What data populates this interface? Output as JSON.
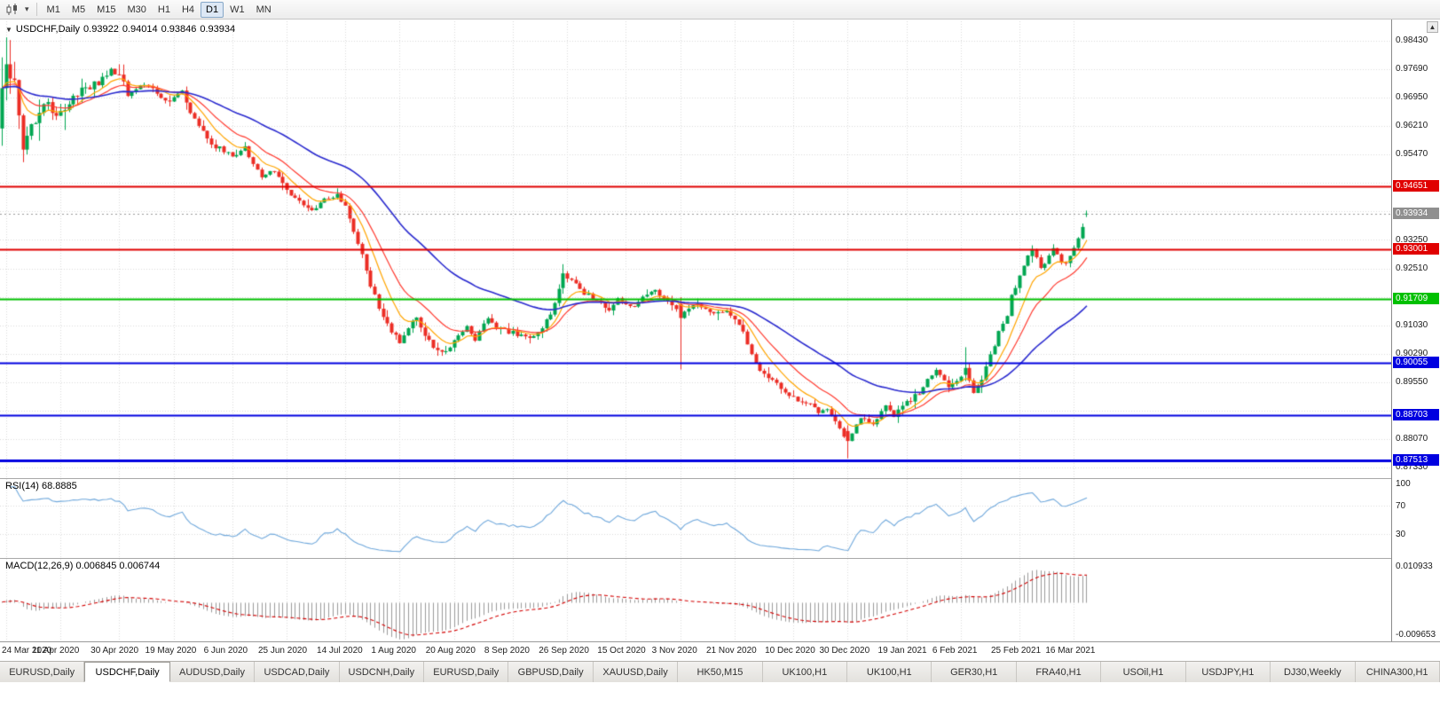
{
  "toolbar": {
    "timeframes": [
      "M1",
      "M5",
      "M15",
      "M30",
      "H1",
      "H4",
      "D1",
      "W1",
      "MN"
    ],
    "active_timeframe": "D1"
  },
  "chart": {
    "symbol_period": "USDCHF,Daily",
    "ohlc": {
      "open": "0.93922",
      "high": "0.94014",
      "low": "0.93846",
      "close": "0.93934"
    }
  },
  "indicators": {
    "rsi": {
      "label": "RSI(14) 68.8885",
      "period": 14,
      "value": "68.8885",
      "levels": [
        100,
        70,
        30
      ]
    },
    "macd": {
      "label": "MACD(12,26,9) 0.006845 0.006744",
      "value": "0.006845",
      "signal_value": "0.006744",
      "axis_max": "0.010933",
      "axis_min": "-0.009653"
    }
  },
  "colors": {
    "candle_up": "#00A651",
    "candle_down": "#EC2D25",
    "ma_fast": "#FFA500",
    "ma_mid": "#FF3B30",
    "ma_slow": "#2A2ACF",
    "rsi_line": "#6FA8DC",
    "macd_hist": "#9A9A9A",
    "macd_signal": "#D40000",
    "grid": "#DBDBDB",
    "current_line": "#999999"
  },
  "chart_data": {
    "type": "candlestick",
    "symbol": "USDCHF",
    "timeframe": "Daily",
    "candle_count": 260,
    "ylim": [
      0.871,
      0.988
    ],
    "macd_range": [
      -0.009653,
      0.010933
    ],
    "price_axis": {
      "grid_start": 0.9843,
      "grid_step": 0.0074,
      "tick_labels": [
        "0.98430",
        "0.97690",
        "0.96950",
        "0.96210",
        "0.95470",
        "0.93250",
        "0.92510",
        "0.91030",
        "0.90290",
        "0.89550",
        "0.88070",
        "0.87330"
      ]
    },
    "x_dates": [
      "24 Mar 2020",
      "11 Apr 2020",
      "30 Apr 2020",
      "19 May 2020",
      "6 Jun 2020",
      "25 Jun 2020",
      "14 Jul 2020",
      "1 Aug 2020",
      "20 Aug 2020",
      "8 Sep 2020",
      "26 Sep 2020",
      "15 Oct 2020",
      "3 Nov 2020",
      "21 Nov 2020",
      "10 Dec 2020",
      "30 Dec 2020",
      "19 Jan 2021",
      "6 Feb 2021",
      "25 Feb 2021",
      "16 Mar 2021"
    ],
    "hlines": [
      {
        "price": 0.94651,
        "label": "0.94651",
        "color": "#E00000",
        "width": 2
      },
      {
        "price": 0.93001,
        "label": "0.93001",
        "color": "#E00000",
        "width": 2
      },
      {
        "price": 0.91709,
        "label": "0.91709",
        "color": "#00C000",
        "width": 2
      },
      {
        "price": 0.90055,
        "label": "0.90055",
        "color": "#0000E0",
        "width": 2
      },
      {
        "price": 0.88703,
        "label": "0.88703",
        "color": "#0000E0",
        "width": 2
      },
      {
        "price": 0.87513,
        "label": "0.87513",
        "color": "#0000E0",
        "width": 3
      }
    ],
    "current_price": {
      "value": 0.93934,
      "label": "0.93934",
      "color": "#8F8F8F"
    },
    "close_anchors": [
      [
        0,
        0.97
      ],
      [
        3,
        0.975
      ],
      [
        5,
        0.956
      ],
      [
        8,
        0.964
      ],
      [
        10,
        0.969
      ],
      [
        13,
        0.965
      ],
      [
        15,
        0.9665
      ],
      [
        18,
        0.97
      ],
      [
        21,
        0.9725
      ],
      [
        24,
        0.9745
      ],
      [
        26,
        0.977
      ],
      [
        28,
        0.975
      ],
      [
        30,
        0.9705
      ],
      [
        33,
        0.973
      ],
      [
        36,
        0.9715
      ],
      [
        38,
        0.969
      ],
      [
        40,
        0.9685
      ],
      [
        43,
        0.971
      ],
      [
        46,
        0.9635
      ],
      [
        50,
        0.9575
      ],
      [
        55,
        0.9545
      ],
      [
        58,
        0.9565
      ],
      [
        62,
        0.9485
      ],
      [
        65,
        0.9505
      ],
      [
        69,
        0.9445
      ],
      [
        72,
        0.942
      ],
      [
        74,
        0.94
      ],
      [
        77,
        0.943
      ],
      [
        80,
        0.9445
      ],
      [
        82,
        0.9415
      ],
      [
        84,
        0.9345
      ],
      [
        86,
        0.929
      ],
      [
        88,
        0.9205
      ],
      [
        90,
        0.915
      ],
      [
        93,
        0.9085
      ],
      [
        95,
        0.906
      ],
      [
        97,
        0.91
      ],
      [
        99,
        0.9125
      ],
      [
        101,
        0.907
      ],
      [
        104,
        0.904
      ],
      [
        106,
        0.903
      ],
      [
        109,
        0.9075
      ],
      [
        111,
        0.91
      ],
      [
        113,
        0.906
      ],
      [
        116,
        0.9125
      ],
      [
        118,
        0.91
      ],
      [
        120,
        0.909
      ],
      [
        123,
        0.908
      ],
      [
        126,
        0.907
      ],
      [
        129,
        0.91
      ],
      [
        131,
        0.9125
      ],
      [
        133,
        0.9195
      ],
      [
        134,
        0.9235
      ],
      [
        136,
        0.9225
      ],
      [
        138,
        0.9195
      ],
      [
        140,
        0.918
      ],
      [
        143,
        0.916
      ],
      [
        145,
        0.914
      ],
      [
        147,
        0.917
      ],
      [
        149,
        0.916
      ],
      [
        151,
        0.915
      ],
      [
        153,
        0.918
      ],
      [
        155,
        0.9195
      ],
      [
        157,
        0.9185
      ],
      [
        160,
        0.916
      ],
      [
        162,
        0.912
      ],
      [
        165,
        0.916
      ],
      [
        167,
        0.915
      ],
      [
        170,
        0.913
      ],
      [
        173,
        0.914
      ],
      [
        176,
        0.911
      ],
      [
        179,
        0.903
      ],
      [
        181,
        0.899
      ],
      [
        183,
        0.8965
      ],
      [
        186,
        0.894
      ],
      [
        189,
        0.8915
      ],
      [
        192,
        0.89
      ],
      [
        195,
        0.888
      ],
      [
        197,
        0.889
      ],
      [
        199,
        0.885
      ],
      [
        202,
        0.88
      ],
      [
        205,
        0.8865
      ],
      [
        208,
        0.885
      ],
      [
        211,
        0.889
      ],
      [
        213,
        0.887
      ],
      [
        216,
        0.89
      ],
      [
        219,
        0.893
      ],
      [
        221,
        0.8965
      ],
      [
        223,
        0.899
      ],
      [
        226,
        0.894
      ],
      [
        228,
        0.896
      ],
      [
        230,
        0.899
      ],
      [
        232,
        0.893
      ],
      [
        234,
        0.896
      ],
      [
        235,
        0.9
      ],
      [
        237,
        0.905
      ],
      [
        238,
        0.909
      ],
      [
        240,
        0.913
      ],
      [
        241,
        0.918
      ],
      [
        243,
        0.923
      ],
      [
        245,
        0.929
      ],
      [
        246,
        0.93
      ],
      [
        248,
        0.925
      ],
      [
        250,
        0.928
      ],
      [
        251,
        0.93
      ],
      [
        253,
        0.927
      ],
      [
        254,
        0.926
      ],
      [
        256,
        0.93
      ],
      [
        258,
        0.936
      ],
      [
        259,
        0.93934
      ]
    ],
    "candle_overrides": [
      {
        "i": 0,
        "o": 0.9615,
        "h": 0.98,
        "l": 0.957,
        "c": 0.972
      },
      {
        "i": 1,
        "o": 0.972,
        "h": 0.9852,
        "l": 0.9688,
        "c": 0.9782
      },
      {
        "i": 2,
        "o": 0.9782,
        "h": 0.9845,
        "l": 0.9705,
        "c": 0.9745
      },
      {
        "i": 134,
        "o": 0.92,
        "h": 0.9262,
        "l": 0.9185,
        "c": 0.9238
      },
      {
        "i": 162,
        "o": 0.9158,
        "h": 0.9176,
        "l": 0.8988,
        "c": 0.9122
      },
      {
        "i": 202,
        "o": 0.8828,
        "h": 0.8843,
        "l": 0.8757,
        "c": 0.8802
      },
      {
        "i": 230,
        "o": 0.8974,
        "h": 0.9046,
        "l": 0.8958,
        "c": 0.8992
      },
      {
        "i": 246,
        "o": 0.9283,
        "h": 0.9311,
        "l": 0.9266,
        "c": 0.9301
      },
      {
        "i": 259,
        "o": 0.93922,
        "h": 0.94014,
        "l": 0.93846,
        "c": 0.93934
      }
    ]
  },
  "tabs": {
    "items": [
      {
        "label": "EURUSD,Daily",
        "active": false
      },
      {
        "label": "USDCHF,Daily",
        "active": true
      },
      {
        "label": "AUDUSD,Daily",
        "active": false
      },
      {
        "label": "USDCAD,Daily",
        "active": false
      },
      {
        "label": "USDCNH,Daily",
        "active": false
      },
      {
        "label": "EURUSD,Daily",
        "active": false
      },
      {
        "label": "GBPUSD,Daily",
        "active": false
      },
      {
        "label": "XAUUSD,Daily",
        "active": false
      },
      {
        "label": "HK50,M15",
        "active": false
      },
      {
        "label": "UK100,H1",
        "active": false
      },
      {
        "label": "UK100,H1",
        "active": false
      },
      {
        "label": "GER30,H1",
        "active": false
      },
      {
        "label": "FRA40,H1",
        "active": false
      },
      {
        "label": "USOil,H1",
        "active": false
      },
      {
        "label": "USDJPY,H1",
        "active": false
      },
      {
        "label": "DJ30,Weekly",
        "active": false
      },
      {
        "label": "CHINA300,H1",
        "active": false
      }
    ]
  }
}
